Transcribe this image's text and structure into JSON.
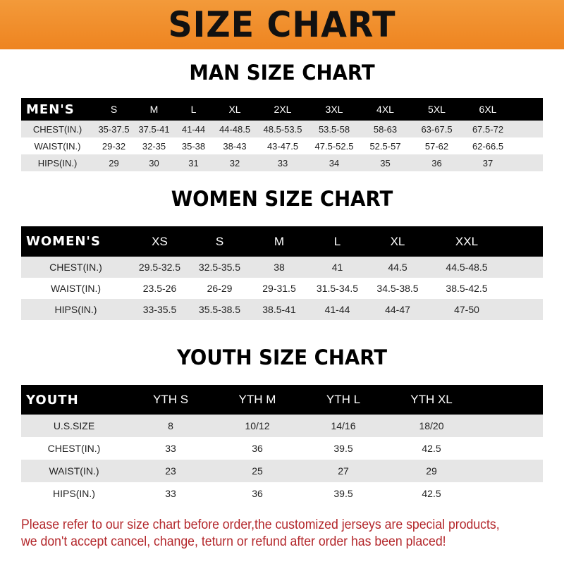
{
  "title": "SIZE CHART",
  "men": {
    "heading": "MAN SIZE CHART",
    "header": [
      "MEN'S",
      "S",
      "M",
      "L",
      "XL",
      "2XL",
      "3XL",
      "4XL",
      "5XL",
      "6XL"
    ],
    "rows": [
      [
        "CHEST(IN.)",
        "35-37.5",
        "37.5-41",
        "41-44",
        "44-48.5",
        "48.5-53.5",
        "53.5-58",
        "58-63",
        "63-67.5",
        "67.5-72"
      ],
      [
        "WAIST(IN.)",
        "29-32",
        "32-35",
        "35-38",
        "38-43",
        "43-47.5",
        "47.5-52.5",
        "52.5-57",
        "57-62",
        "62-66.5"
      ],
      [
        "HIPS(IN.)",
        "29",
        "30",
        "31",
        "32",
        "33",
        "34",
        "35",
        "36",
        "37"
      ]
    ]
  },
  "women": {
    "heading": "WOMEN SIZE CHART",
    "header": [
      "WOMEN'S",
      "XS",
      "S",
      "M",
      "L",
      "XL",
      "XXL"
    ],
    "rows": [
      [
        "CHEST(IN.)",
        "29.5-32.5",
        "32.5-35.5",
        "38",
        "41",
        "44.5",
        "44.5-48.5"
      ],
      [
        "WAIST(IN.)",
        "23.5-26",
        "26-29",
        "29-31.5",
        "31.5-34.5",
        "34.5-38.5",
        "38.5-42.5"
      ],
      [
        "HIPS(IN.)",
        "33-35.5",
        "35.5-38.5",
        "38.5-41",
        "41-44",
        "44-47",
        "47-50"
      ]
    ]
  },
  "youth": {
    "heading": "YOUTH SIZE CHART",
    "header": [
      "YOUTH",
      "YTH S",
      "YTH M",
      "YTH L",
      "YTH XL"
    ],
    "rows": [
      [
        "U.S.SIZE",
        "8",
        "10/12",
        "14/16",
        "18/20"
      ],
      [
        "CHEST(IN.)",
        "33",
        "36",
        "39.5",
        "42.5"
      ],
      [
        "WAIST(IN.)",
        "23",
        "25",
        "27",
        "29"
      ],
      [
        "HIPS(IN.)",
        "33",
        "36",
        "39.5",
        "42.5"
      ]
    ]
  },
  "footer": {
    "line1": "Please refer to our size chart before order,the customized jerseys are special products,",
    "line2": "we don't accept cancel, change, teturn or refund after order has been placed!"
  },
  "colors": {
    "banner": "#ee8420",
    "header_row": "#000000",
    "stripe": "#e6e6e6",
    "notice": "#b3262a"
  }
}
